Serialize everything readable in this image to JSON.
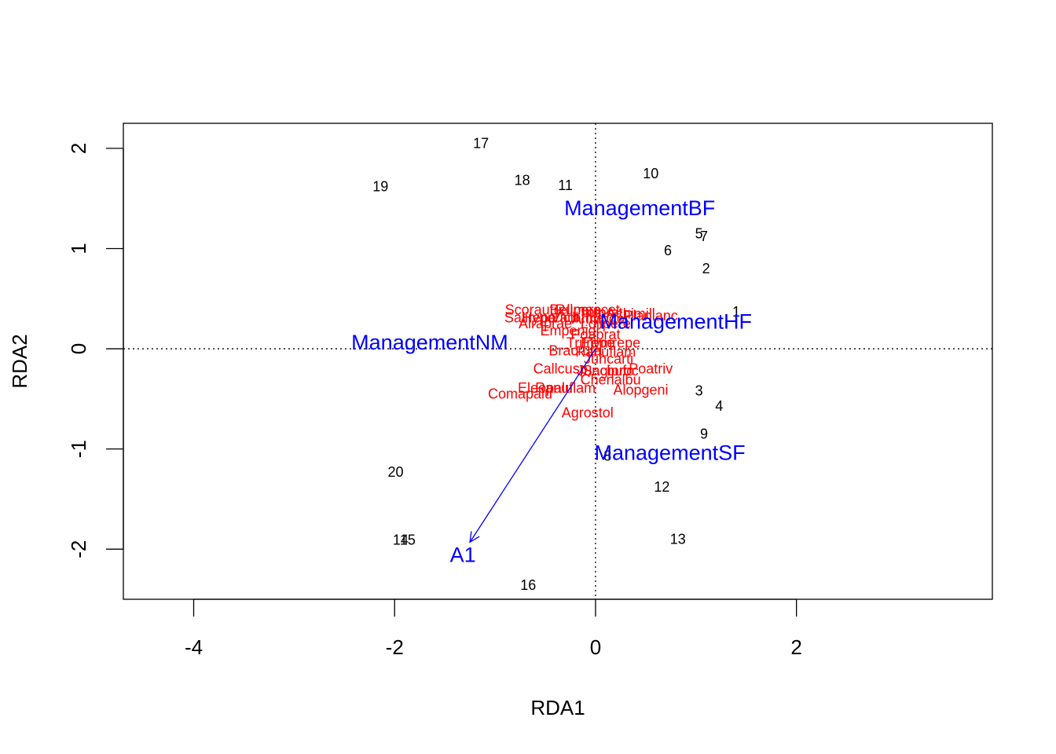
{
  "chart_data": {
    "type": "scatter",
    "xlabel": "RDA1",
    "ylabel": "RDA2",
    "xlim": [
      -4.7,
      3.95
    ],
    "ylim": [
      -2.5,
      2.25
    ],
    "xticks": [
      -4,
      -2,
      0,
      2
    ],
    "yticks": [
      -2,
      -1,
      0,
      1,
      2
    ],
    "grid": false,
    "reference_lines": {
      "x": 0,
      "y": 0,
      "style": "dotted"
    },
    "colors": {
      "sites": "#000000",
      "species": "#ff0000",
      "constraints": "#0000ff"
    },
    "sites": [
      {
        "label": "1",
        "x": 1.4,
        "y": 0.37
      },
      {
        "label": "2",
        "x": 1.1,
        "y": 0.8
      },
      {
        "label": "3",
        "x": 1.03,
        "y": -0.42
      },
      {
        "label": "4",
        "x": 1.23,
        "y": -0.57
      },
      {
        "label": "5",
        "x": 1.03,
        "y": 1.15
      },
      {
        "label": "6",
        "x": 0.72,
        "y": 0.98
      },
      {
        "label": "7",
        "x": 1.08,
        "y": 1.12
      },
      {
        "label": "8",
        "x": 0.12,
        "y": -1.07
      },
      {
        "label": "9",
        "x": 1.08,
        "y": -0.85
      },
      {
        "label": "10",
        "x": 0.55,
        "y": 1.75
      },
      {
        "label": "11",
        "x": -0.3,
        "y": 1.63
      },
      {
        "label": "12",
        "x": 0.66,
        "y": -1.38
      },
      {
        "label": "13",
        "x": 0.82,
        "y": -1.9
      },
      {
        "label": "14",
        "x": -1.94,
        "y": -1.91
      },
      {
        "label": "15",
        "x": -1.87,
        "y": -1.91
      },
      {
        "label": "16",
        "x": -0.67,
        "y": -2.36
      },
      {
        "label": "17",
        "x": -1.14,
        "y": 2.05
      },
      {
        "label": "18",
        "x": -0.73,
        "y": 1.68
      },
      {
        "label": "19",
        "x": -2.14,
        "y": 1.62
      },
      {
        "label": "20",
        "x": -1.99,
        "y": -1.23
      }
    ],
    "species": [
      {
        "label": "Scorautu",
        "x": -0.62,
        "y": 0.39
      },
      {
        "label": "Bellpere",
        "x": -0.2,
        "y": 0.39
      },
      {
        "label": "Rumeacet",
        "x": -0.08,
        "y": 0.39
      },
      {
        "label": "Trifprat",
        "x": 0.05,
        "y": 0.36
      },
      {
        "label": "Achimill",
        "x": 0.35,
        "y": 0.35
      },
      {
        "label": "Planlanc",
        "x": 0.55,
        "y": 0.33
      },
      {
        "label": "Salirepe",
        "x": -0.65,
        "y": 0.31
      },
      {
        "label": "Hyporadi",
        "x": -0.45,
        "y": 0.31
      },
      {
        "label": "Viciathy",
        "x": -0.2,
        "y": 0.31
      },
      {
        "label": "Anthodor",
        "x": 0.05,
        "y": 0.3
      },
      {
        "label": "Airaprae",
        "x": -0.5,
        "y": 0.25
      },
      {
        "label": "Lolipere",
        "x": 0.1,
        "y": 0.25
      },
      {
        "label": "Empenigr",
        "x": -0.25,
        "y": 0.18
      },
      {
        "label": "Poaprat",
        "x": 0.0,
        "y": 0.14
      },
      {
        "label": "Trifrepe",
        "x": -0.05,
        "y": 0.06
      },
      {
        "label": "Elymrepe",
        "x": 0.15,
        "y": 0.06
      },
      {
        "label": "Bracruta",
        "x": -0.2,
        "y": -0.02
      },
      {
        "label": "Ranuflam",
        "x": 0.1,
        "y": -0.03
      },
      {
        "label": "Juncarti",
        "x": 0.13,
        "y": -0.1
      },
      {
        "label": "Callcusp",
        "x": -0.35,
        "y": -0.2
      },
      {
        "label": "Juncbufo",
        "x": 0.1,
        "y": -0.22
      },
      {
        "label": "Sagiproc",
        "x": 0.15,
        "y": -0.22
      },
      {
        "label": "Poatriv",
        "x": 0.55,
        "y": -0.2
      },
      {
        "label": "Chenalbu",
        "x": 0.15,
        "y": -0.31
      },
      {
        "label": "Alopgeni",
        "x": 0.45,
        "y": -0.41
      },
      {
        "label": "Eleopalu",
        "x": -0.5,
        "y": -0.39
      },
      {
        "label": "Ranuflam",
        "x": -0.3,
        "y": -0.39
      },
      {
        "label": "Comapalu",
        "x": -0.75,
        "y": -0.45
      },
      {
        "label": "Agrostol",
        "x": -0.08,
        "y": -0.64
      }
    ],
    "centroids": [
      {
        "label": "ManagementBF",
        "x": 0.44,
        "y": 1.41
      },
      {
        "label": "ManagementHF",
        "x": 0.8,
        "y": 0.28
      },
      {
        "label": "ManagementNM",
        "x": -1.65,
        "y": 0.07
      },
      {
        "label": "ManagementSF",
        "x": 0.74,
        "y": -1.03
      }
    ],
    "arrows": [
      {
        "label": "A1",
        "x": -1.25,
        "y": -1.93,
        "label_x": -1.32,
        "label_y": -2.05
      }
    ]
  }
}
